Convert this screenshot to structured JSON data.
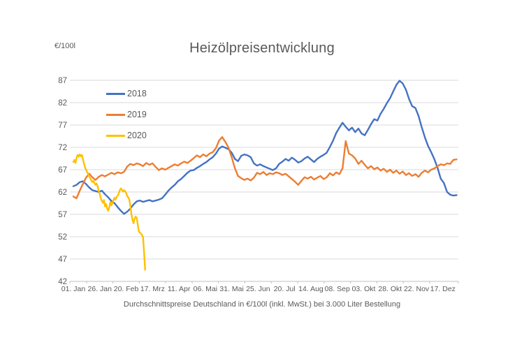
{
  "chart_data": {
    "type": "line",
    "title": "Heizölpreisentwicklung",
    "y_axis_label": "€/100l",
    "caption": "Durchschnittspreise Deutschland in €/100l (inkl. MwSt.) bei 3.000 Liter Bestellung",
    "grid": true,
    "legend_position": "top-left-inside",
    "colors": {
      "grid": "#D9D9D9",
      "axis": "#BFBFBF",
      "text": "#595959"
    },
    "x_axis": {
      "tick_labels": [
        "01. Jan",
        "26. Jan",
        "20. Feb",
        "17. Mrz",
        "11. Apr",
        "06. Mai",
        "31. Mai",
        "25. Jun",
        "20. Jul",
        "14. Aug",
        "08. Sep",
        "03. Okt",
        "28. Okt",
        "22. Nov",
        "17. Dez"
      ],
      "tick_days": [
        0,
        25,
        50,
        75,
        100,
        125,
        150,
        175,
        200,
        225,
        250,
        275,
        300,
        325,
        350
      ],
      "min_day": 0,
      "max_day": 364
    },
    "y_axis": {
      "ticks": [
        42,
        47,
        52,
        57,
        62,
        67,
        72,
        77,
        82,
        87
      ],
      "ylim": [
        42,
        87
      ]
    },
    "series": [
      {
        "name": "2018",
        "color": "#4472C4",
        "x_start": 0,
        "x_step": 3,
        "values": [
          63.3,
          63.6,
          64.2,
          64.4,
          63.8,
          63.0,
          62.4,
          62.2,
          62.0,
          62.3,
          61.5,
          60.8,
          60.0,
          59.5,
          58.6,
          57.8,
          57.1,
          57.6,
          58.3,
          59.2,
          59.9,
          60.1,
          59.8,
          60.0,
          60.2,
          59.9,
          60.1,
          60.3,
          60.6,
          61.4,
          62.3,
          63.0,
          63.6,
          64.4,
          64.9,
          65.6,
          66.3,
          66.8,
          66.9,
          67.4,
          67.8,
          68.3,
          68.7,
          69.3,
          69.8,
          70.6,
          71.7,
          72.2,
          71.9,
          71.6,
          70.8,
          69.4,
          68.9,
          70.1,
          70.4,
          70.2,
          69.8,
          68.4,
          67.9,
          68.2,
          67.8,
          67.5,
          67.2,
          66.9,
          67.3,
          68.3,
          68.8,
          69.4,
          69.0,
          69.7,
          69.2,
          68.6,
          68.9,
          69.5,
          69.9,
          69.3,
          68.7,
          69.4,
          69.9,
          70.3,
          70.8,
          72.1,
          73.5,
          75.2,
          76.4,
          77.5,
          76.6,
          75.8,
          76.4,
          75.4,
          76.2,
          75.1,
          74.7,
          75.9,
          77.2,
          78.3,
          78.0,
          79.5,
          80.6,
          81.9,
          83.0,
          84.5,
          86.0,
          86.9,
          86.3,
          84.9,
          82.8,
          81.2,
          80.8,
          79.0,
          76.5,
          74.2,
          72.3,
          70.9,
          69.3,
          67.4,
          65.0,
          64.0,
          62.0,
          61.4,
          61.2,
          61.3
        ]
      },
      {
        "name": "2019",
        "color": "#ED7D31",
        "x_start": 0,
        "x_step": 3,
        "values": [
          61.0,
          60.6,
          62.3,
          63.8,
          65.2,
          66.1,
          65.3,
          64.7,
          65.4,
          65.8,
          65.5,
          65.9,
          66.3,
          66.0,
          66.4,
          66.2,
          66.5,
          67.7,
          68.3,
          68.0,
          68.4,
          68.2,
          67.8,
          68.5,
          68.1,
          68.4,
          67.6,
          66.9,
          67.3,
          67.0,
          67.4,
          67.8,
          68.2,
          67.9,
          68.4,
          68.8,
          68.5,
          69.0,
          69.6,
          70.2,
          69.8,
          70.4,
          70.0,
          70.6,
          70.9,
          71.8,
          73.5,
          74.3,
          73.2,
          71.9,
          69.8,
          67.3,
          65.6,
          65.1,
          64.7,
          65.0,
          64.6,
          65.2,
          66.3,
          66.0,
          66.5,
          65.8,
          66.2,
          66.0,
          66.4,
          66.2,
          65.8,
          66.1,
          65.5,
          64.9,
          64.3,
          63.6,
          64.5,
          65.3,
          65.0,
          65.4,
          64.8,
          65.2,
          65.6,
          64.9,
          65.3,
          66.2,
          65.7,
          66.4,
          66.0,
          67.3,
          73.4,
          70.6,
          70.2,
          69.5,
          68.3,
          69.0,
          68.1,
          67.3,
          67.8,
          67.1,
          67.5,
          66.8,
          67.2,
          66.5,
          67.0,
          66.3,
          66.8,
          66.1,
          66.6,
          65.8,
          66.2,
          65.6,
          66.0,
          65.4,
          66.3,
          66.8,
          66.4,
          67.0,
          67.3,
          67.8,
          68.2,
          68.0,
          68.4,
          68.3,
          69.2,
          69.3
        ]
      },
      {
        "name": "2020",
        "color": "#FFC000",
        "x_start": 0,
        "x_step": 1,
        "values": [
          68.7,
          69.2,
          68.5,
          69.5,
          70.3,
          69.9,
          70.4,
          70.0,
          70.3,
          69.4,
          68.4,
          67.6,
          67.0,
          66.5,
          66.0,
          65.5,
          65.1,
          64.6,
          64.2,
          64.5,
          64.0,
          63.6,
          63.9,
          63.3,
          62.3,
          61.5,
          60.6,
          60.0,
          59.6,
          60.2,
          58.8,
          59.3,
          58.3,
          57.8,
          58.6,
          59.8,
          59.0,
          59.5,
          60.2,
          60.7,
          60.3,
          60.9,
          61.2,
          61.7,
          62.4,
          62.8,
          62.5,
          62.1,
          62.4,
          62.2,
          61.8,
          61.1,
          60.8,
          60.3,
          58.9,
          57.0,
          55.8,
          55.0,
          56.0,
          56.5,
          56.2,
          54.7,
          53.2,
          52.9,
          52.7,
          52.4,
          51.9,
          48.5,
          44.6
        ]
      }
    ]
  }
}
